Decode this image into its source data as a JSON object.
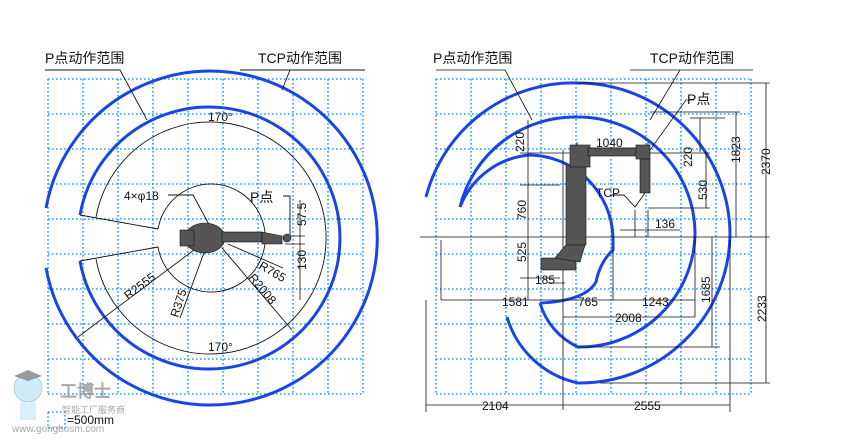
{
  "left_view": {
    "p_range_label": "P点动作范围",
    "tcp_range_label": "TCP动作范围",
    "angle_top": "170°",
    "angle_bottom": "170°",
    "holes": "4×φ18",
    "p_point": "P点",
    "dim_57_5": "57.5",
    "dim_130": "130",
    "r765": "R765",
    "r2008": "R2008",
    "r2555": "R2555",
    "r375": "R375"
  },
  "right_view": {
    "p_range_label": "P点动作范围",
    "tcp_range_label": "TCP动作范围",
    "p_point": "P点",
    "tcp": "TCP",
    "dims": {
      "d220_left": "220",
      "d1040": "1040",
      "d220_right": "220",
      "d530": "530",
      "d1823": "1823",
      "d2370": "2370",
      "d136": "136",
      "d760": "760",
      "d525": "525",
      "d185": "185",
      "d1581": "1581",
      "d765": "765",
      "d1243": "1243",
      "d2008": "2008",
      "d1685": "1685",
      "d2233": "2233",
      "d2104": "2104",
      "d2555": "2555"
    }
  },
  "legend": {
    "scale": "=500mm"
  },
  "watermark": {
    "brand": "工博士",
    "slogan": "智能工厂服务商",
    "url": "www.gongbosm.com"
  },
  "colors": {
    "range_arc": "#1846e6",
    "grid": "#2b9cf0"
  }
}
